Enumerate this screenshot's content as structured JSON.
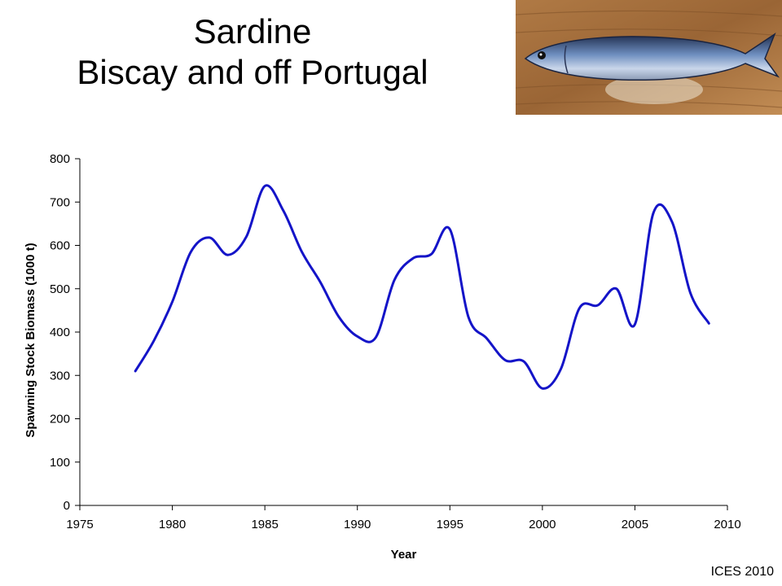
{
  "header": {
    "title_line1": "Sardine",
    "title_line2": "Biscay and off Portugal"
  },
  "footer": {
    "credit": "ICES 2010"
  },
  "photo": {
    "icon": "sardine-fish-icon"
  },
  "colors": {
    "line": "#1414c8",
    "axis": "#000000"
  },
  "chart_data": {
    "type": "line",
    "title": "",
    "xlabel": "Year",
    "ylabel": "Spawning Stock Biomass  (1000 t)",
    "xlim": [
      1975,
      2010
    ],
    "ylim": [
      0,
      800
    ],
    "xticks": [
      1975,
      1980,
      1985,
      1990,
      1995,
      2000,
      2005,
      2010
    ],
    "yticks": [
      0,
      100,
      200,
      300,
      400,
      500,
      600,
      700,
      800
    ],
    "grid": false,
    "legend": "none",
    "series": [
      {
        "x": [
          1978,
          1979,
          1980,
          1981,
          1982,
          1983,
          1984,
          1985,
          1986,
          1987,
          1988,
          1989,
          1990,
          1991,
          1992,
          1993,
          1994,
          1995,
          1996,
          1997,
          1998,
          1999,
          2000,
          2001,
          2002,
          2003,
          2004,
          2005,
          2006,
          2007,
          2008,
          2009
        ],
        "y": [
          310,
          380,
          470,
          585,
          618,
          578,
          620,
          737,
          680,
          585,
          515,
          435,
          390,
          388,
          520,
          570,
          580,
          637,
          435,
          385,
          335,
          332,
          270,
          315,
          455,
          462,
          500,
          418,
          675,
          655,
          490,
          420
        ]
      }
    ]
  }
}
